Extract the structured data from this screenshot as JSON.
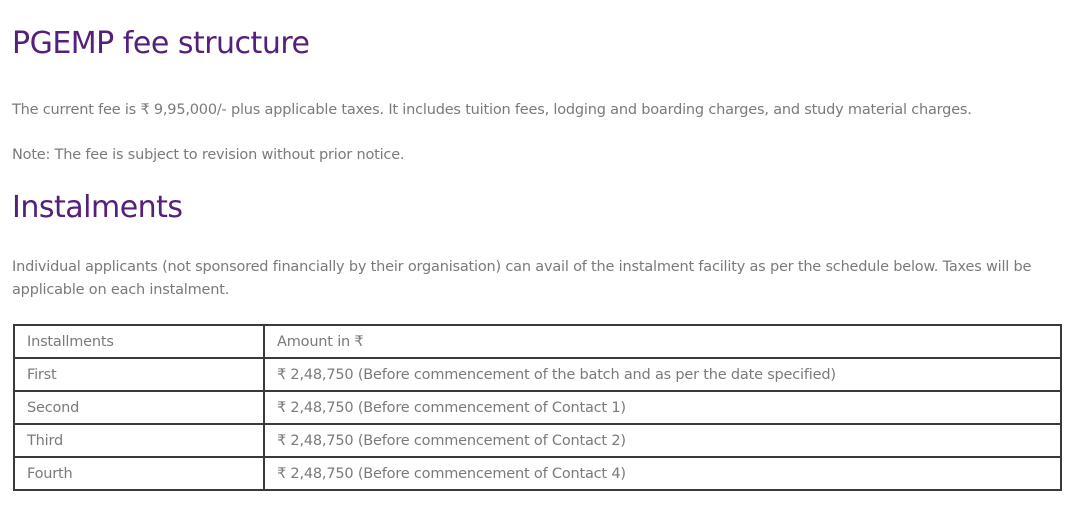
{
  "fee": {
    "title": "PGEMP fee structure",
    "description": "The current fee is ₹ 9,95,000/- plus applicable taxes. It includes tuition fees, lodging and boarding charges, and study material charges.",
    "note": "Note: The fee is subject to revision without prior notice."
  },
  "instalments": {
    "title": "Instalments",
    "description": "Individual applicants (not sponsored financially by their organisation) can avail of the instalment facility as per the schedule below. Taxes will be applicable on each instalment.",
    "table": {
      "headers": [
        "Installments",
        "Amount in ₹"
      ],
      "rows": [
        [
          "First",
          "₹ 2,48,750 (Before commencement of the batch and as per the date specified)"
        ],
        [
          "Second",
          "₹ 2,48,750 (Before commencement of Contact 1)"
        ],
        [
          "Third",
          "₹ 2,48,750 (Before commencement of Contact 2)"
        ],
        [
          "Fourth",
          "₹ 2,48,750 (Before commencement of Contact 4)"
        ]
      ]
    }
  },
  "colors": {
    "heading": "#55207a",
    "text": "#7a7a7a",
    "border": "#3a3a3a"
  }
}
